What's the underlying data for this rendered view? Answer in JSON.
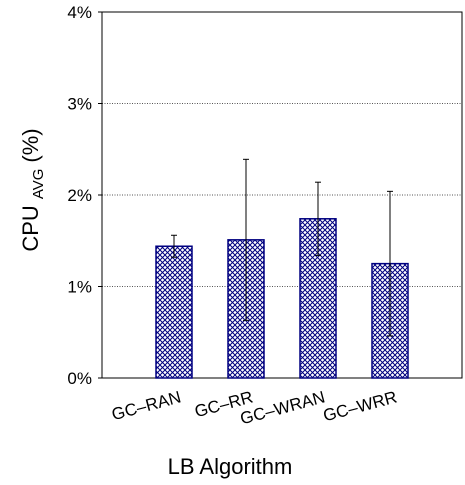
{
  "chart_data": {
    "type": "bar",
    "categories": [
      "GC–RAN",
      "GC–RR",
      "GC–WRAN",
      "GC–WRR"
    ],
    "values": [
      1.44,
      1.51,
      1.74,
      1.25
    ],
    "errors": [
      0.12,
      0.88,
      0.4,
      0.79
    ],
    "color": "#000080",
    "ylim": [
      0,
      4
    ],
    "yticks": [
      {
        "value": 0,
        "label": "0%"
      },
      {
        "value": 1,
        "label": "1%"
      },
      {
        "value": 2,
        "label": "2%"
      },
      {
        "value": 3,
        "label": "3%"
      },
      {
        "value": 4,
        "label": "4%"
      }
    ],
    "grid": true,
    "xlabel": "LB Algorithm",
    "ylabel": "CPU",
    "ylabel_subscript": "AVG",
    "ylabel_unit": "(%)"
  }
}
